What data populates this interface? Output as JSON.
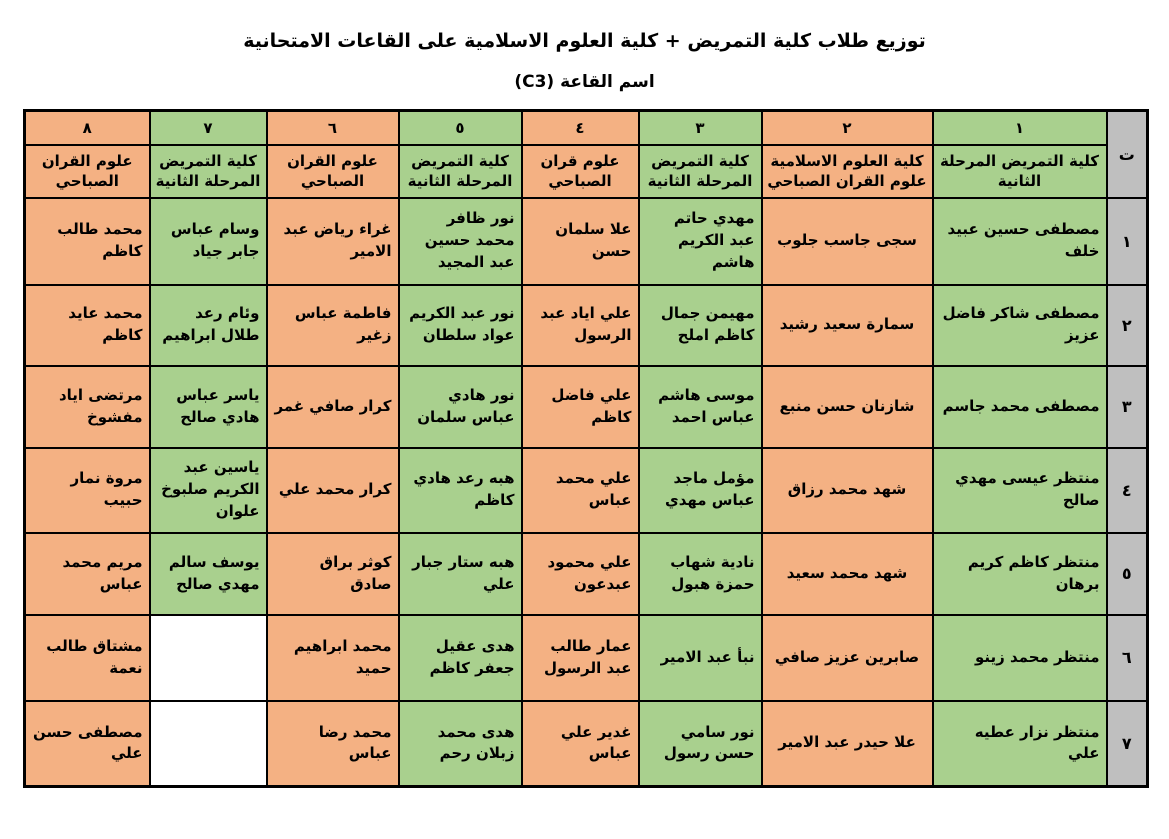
{
  "title": "توزيع طلاب كلية التمريض + كلية العلوم الاسلامية على القاعات الامتحانية",
  "subtitle": "اسم القاعة (C3)",
  "colors": {
    "green": "#A9D08E",
    "orange": "#F4B183",
    "gray": "#BFBFBF",
    "empty": "#FFFFFF"
  },
  "table": {
    "serial_header": "ت",
    "columns": [
      {
        "num": "١",
        "college": "كلية التمريض المرحلة الثانية",
        "color": "green"
      },
      {
        "num": "٢",
        "college": "كلية العلوم الاسلامية علوم القران الصباحي",
        "color": "orange"
      },
      {
        "num": "٣",
        "college": "كلية التمريض المرحلة الثانية",
        "color": "green"
      },
      {
        "num": "٤",
        "college": "علوم قران الصباحي",
        "color": "orange"
      },
      {
        "num": "٥",
        "college": "كلية التمريض المرحلة الثانية",
        "color": "green"
      },
      {
        "num": "٦",
        "college": "علوم القران الصباحي",
        "color": "orange"
      },
      {
        "num": "٧",
        "college": "كلية التمريض المرحلة الثانية",
        "color": "green"
      },
      {
        "num": "٨",
        "college": "علوم القران الصباحي",
        "color": "orange"
      }
    ],
    "rows": [
      {
        "serial": "١",
        "cells": [
          "مصطفى حسين عبيد خلف",
          "سجى جاسب جلوب",
          "مهدي حاتم عبد الكريم هاشم",
          "علا سلمان حسن",
          "نور ظافر محمد حسين عبد المجيد",
          "غراء رياض عبد الامير",
          "وسام عباس جابر جياد",
          "محمد طالب كاظم"
        ]
      },
      {
        "serial": "٢",
        "cells": [
          "مصطفى شاكر فاضل عزيز",
          "سمارة سعيد رشيد",
          "مهيمن جمال كاظم املح",
          "علي اياد عبد الرسول",
          "نور عبد الكريم عواد سلطان",
          "فاطمة عباس زغير",
          "وئام رعد طلال ابراهيم",
          "محمد عايد كاظم"
        ]
      },
      {
        "serial": "٣",
        "cells": [
          "مصطفى محمد جاسم",
          "شازنان حسن منبع",
          "موسى هاشم عباس احمد",
          "علي فاضل كاظم",
          "نور هادي عباس سلمان",
          "كرار صافي غمر",
          "ياسر عباس هادي صالح",
          "مرتضى اياد مفشوخ"
        ]
      },
      {
        "serial": "٤",
        "cells": [
          "منتظر عيسى مهدي صالح",
          "شهد محمد رزاق",
          "مؤمل ماجد عباس مهدي",
          "علي محمد عباس",
          "هبه رعد هادي كاظم",
          "كرار محمد علي",
          "ياسين عبد الكريم صلبوخ علوان",
          "مروة نمار حبيب"
        ]
      },
      {
        "serial": "٥",
        "cells": [
          "منتظر كاظم كريم برهان",
          "شهد محمد سعيد",
          "نادية شهاب حمزة هبول",
          "علي محمود عبدعون",
          "هبه ستار جبار علي",
          "كوثر براق صادق",
          "يوسف سالم مهدي صالح",
          "مريم محمد عباس"
        ]
      },
      {
        "serial": "٦",
        "cells": [
          "منتظر محمد زينو",
          "صابرين عزيز صافي",
          "نبأ عبد الامير",
          "عمار طالب عبد الرسول",
          "هدى عقيل جعفر كاظم",
          "محمد ابراهيم حميد",
          "",
          "مشتاق طالب نعمة"
        ]
      },
      {
        "serial": "٧",
        "cells": [
          "منتظر نزار عطيه علي",
          "علا حيدر عبد الامير",
          "نور سامي حسن رسول",
          "غدير علي عباس",
          "هدى محمد زبلان رحم",
          "محمد رضا عباس",
          "",
          "مصطفى حسن علي"
        ]
      }
    ]
  }
}
